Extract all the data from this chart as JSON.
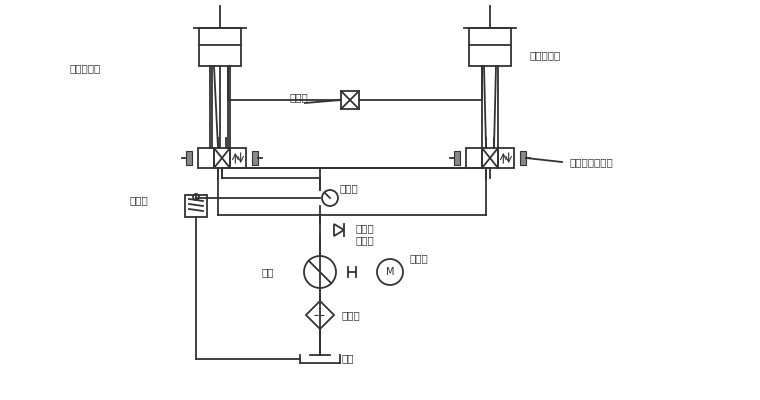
{
  "bg_color": "#ffffff",
  "line_color": "#333333",
  "text_color": "#333333",
  "labels": {
    "cyl1": "第一液压缸",
    "cyl2": "第二液压缸",
    "speed_valve": "调速阀",
    "solenoid": "三位四通电磁阀",
    "overflow": "溢流阀",
    "pressure": "压力表",
    "check": "单向阀",
    "coupling": "联轴器",
    "motor": "电动机",
    "pump": "油泵",
    "filter": "滤油器",
    "tank": "油箱"
  },
  "figsize": [
    7.6,
    4.0
  ],
  "dpi": 100
}
